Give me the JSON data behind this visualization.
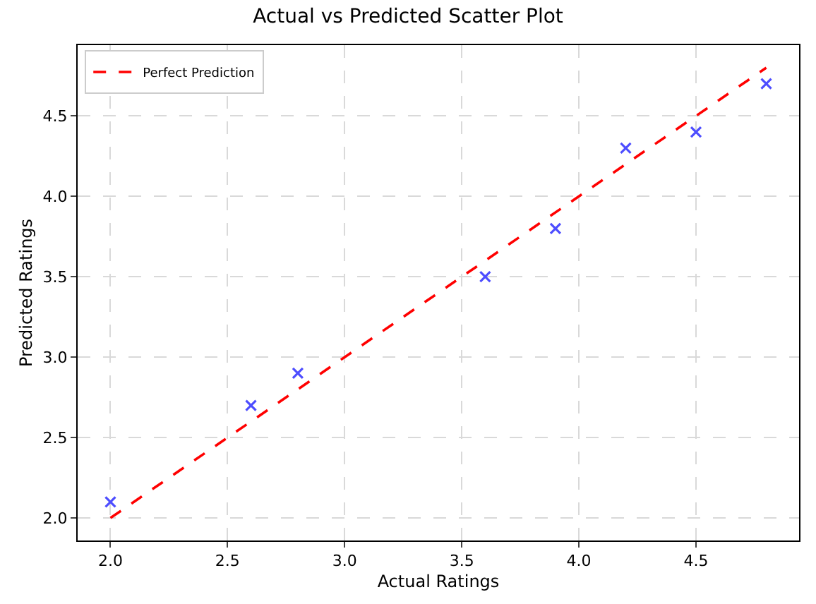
{
  "chart_data": {
    "type": "scatter",
    "title": "Actual vs Predicted Scatter Plot",
    "xlabel": "Actual Ratings",
    "ylabel": "Predicted Ratings",
    "series": [
      {
        "color": "#4d4dff",
        "marker": "cross",
        "x": [
          2.0,
          2.6,
          2.8,
          3.6,
          3.9,
          4.2,
          4.5,
          4.8
        ],
        "values": [
          2.1,
          2.7,
          2.9,
          3.5,
          3.8,
          4.3,
          4.4,
          4.7
        ]
      },
      {
        "type": "line",
        "name": "Perfect Prediction",
        "color": "#ff0000",
        "line_style": "dashed",
        "marker": "none",
        "x": [
          2.0,
          4.8
        ],
        "values": [
          2.0,
          4.8
        ]
      }
    ],
    "xlim": [
      1.86,
      4.94
    ],
    "ylim": [
      1.86,
      4.94
    ],
    "xticks": [
      {
        "value": 2.0,
        "label": "2.0"
      },
      2.5,
      {
        "value": 3.0,
        "label": "3.0"
      },
      3.5,
      {
        "value": 4.0,
        "label": "4.0"
      },
      4.5
    ],
    "yticks": [
      {
        "value": 2.0,
        "label": "2.0"
      },
      2.5,
      {
        "value": 3.0,
        "label": "3.0"
      },
      3.5,
      {
        "value": 4.0,
        "label": "4.0"
      },
      4.5
    ],
    "grid": true,
    "legend": "top left"
  }
}
